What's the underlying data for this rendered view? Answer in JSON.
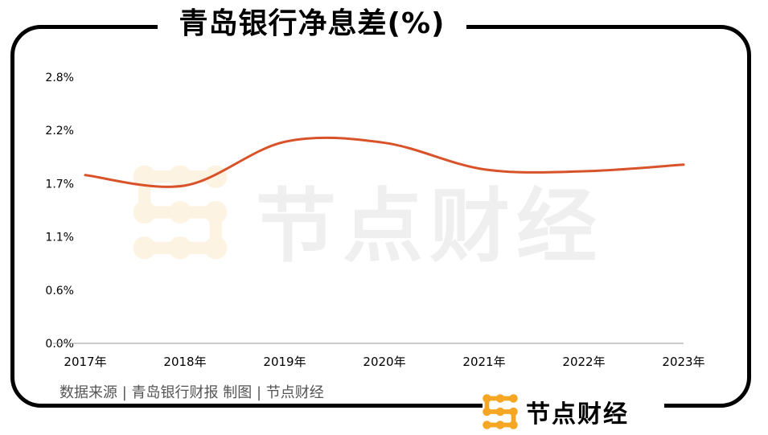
{
  "title": "青岛银行净息差(%)",
  "source": "数据来源 | 青岛银行财报  制图 | 节点财经",
  "brand": {
    "name": "节点财经",
    "icon": "node-logo-icon",
    "logo_color": "#f5a623"
  },
  "watermark": "节点财经",
  "colors": {
    "line": "#d9532a",
    "frame": "#000000",
    "axis": "#999999"
  },
  "chart_data": {
    "type": "line",
    "categories": [
      "2017年",
      "2018年",
      "2019年",
      "2020年",
      "2021年",
      "2022年",
      "2023年"
    ],
    "series": [
      {
        "values": [
          1.77,
          1.66,
          2.12,
          2.11,
          1.83,
          1.81,
          1.88
        ]
      }
    ],
    "ytick_labels": [
      "0.0%",
      "0.6%",
      "1.1%",
      "1.7%",
      "2.2%",
      "2.8%"
    ],
    "ylim": [
      0,
      2.8
    ],
    "ylabel": "",
    "xlabel": "",
    "grid": false,
    "smooth": true
  }
}
